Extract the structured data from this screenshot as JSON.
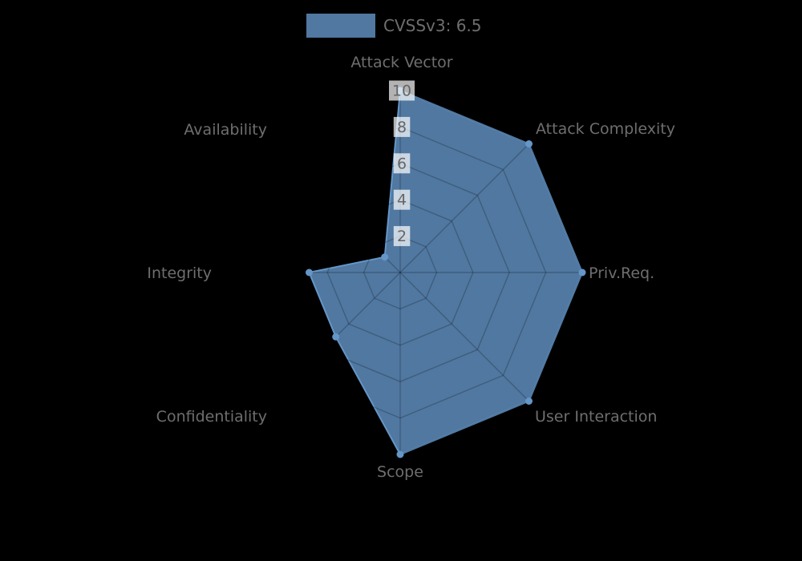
{
  "chart_data": {
    "type": "radar",
    "title": "",
    "categories": [
      "Attack Vector",
      "Attack Complexity",
      "Priv.Req.",
      "User Interaction",
      "Scope",
      "Confidentiality",
      "Integrity",
      "Availability"
    ],
    "series": [
      {
        "name": "CVSSv3: 6.5",
        "values": [
          10,
          10,
          10,
          10,
          10,
          5,
          5,
          1.2
        ]
      }
    ],
    "scale": {
      "min": 0,
      "max": 10,
      "ticks": [
        2,
        4,
        6,
        8,
        10
      ]
    },
    "tick_labels": [
      "2",
      "4",
      "6",
      "8",
      "10"
    ],
    "legend_position": "top",
    "grid": true,
    "markers": true
  },
  "legend": {
    "label": "CVSSv3: 6.5"
  },
  "colors": {
    "background": "#000000",
    "series_fill": "rgba(100,150,200,0.8)",
    "series_solid": "rgb(100,150,200)",
    "grid_line": "rgba(0,0,0,0.22)",
    "axis_label_text": "#6e6e6e",
    "tick_text": "#666666",
    "tick_backdrop": "rgba(255,255,255,0.7)"
  }
}
